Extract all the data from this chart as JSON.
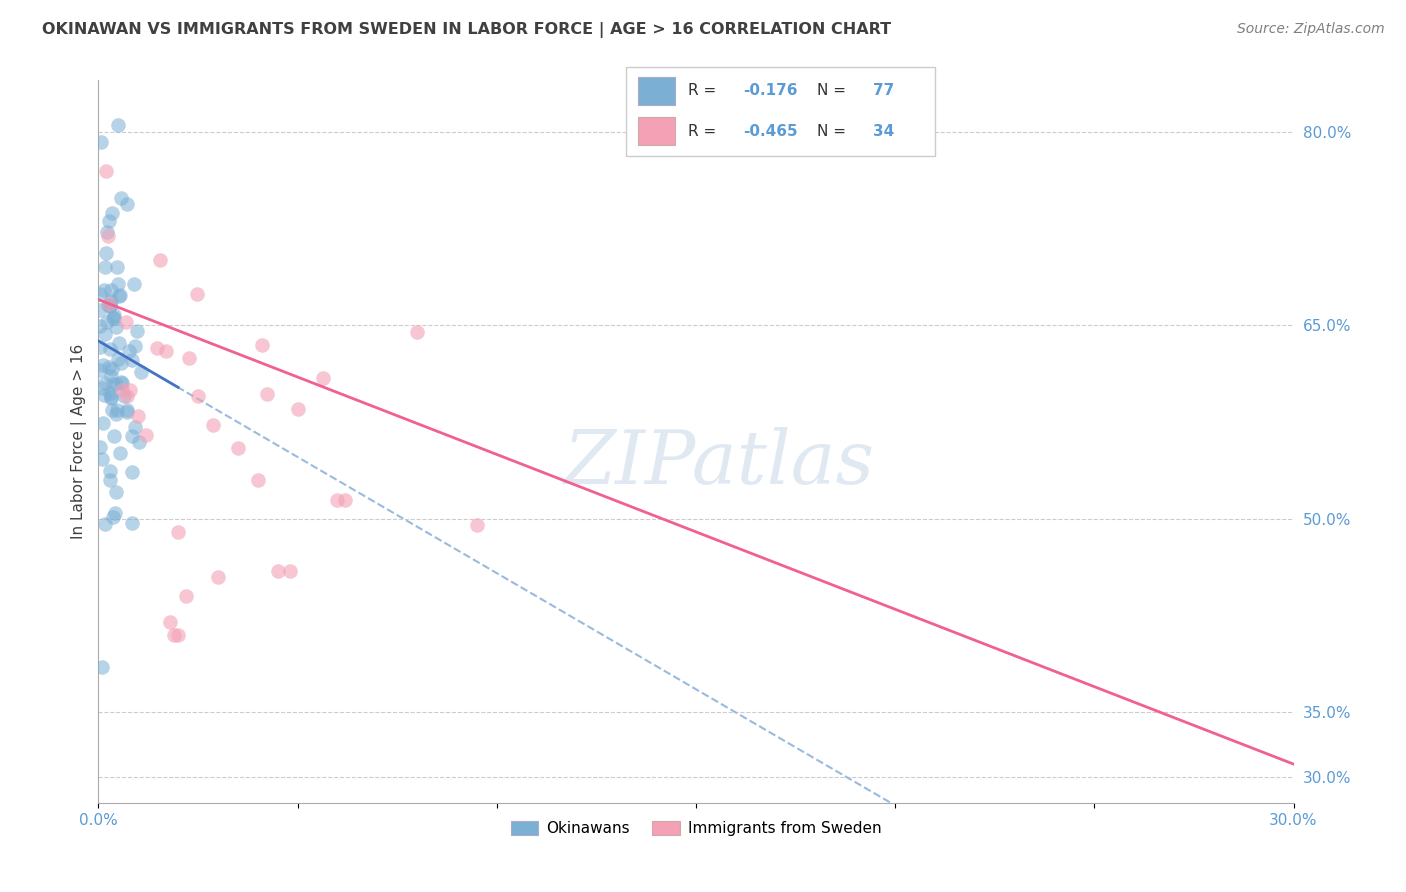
{
  "title": "OKINAWAN VS IMMIGRANTS FROM SWEDEN IN LABOR FORCE | AGE > 16 CORRELATION CHART",
  "source": "Source: ZipAtlas.com",
  "ylabel": "In Labor Force | Age > 16",
  "watermark": "ZIPatlas",
  "okinawan_color": "#7BAFD4",
  "sweden_color": "#F4A0B5",
  "okinawan_line_color": "#4472C4",
  "sweden_line_color": "#F06090",
  "dash_color": "#99BBDD",
  "okinawan_R": -0.176,
  "okinawan_N": 77,
  "sweden_R": -0.465,
  "sweden_N": 34,
  "legend_label_1": "Okinawans",
  "legend_label_2": "Immigrants from Sweden",
  "xlim": [
    0.0,
    0.3
  ],
  "ylim": [
    0.28,
    0.84
  ],
  "ytick_vals": [
    0.8,
    0.65,
    0.5,
    0.35,
    0.3
  ],
  "ytick_labels": [
    "80.0%",
    "65.0%",
    "50.0%",
    "35.0%",
    "30.0%"
  ],
  "xtick_vals": [
    0.0,
    0.05,
    0.1,
    0.15,
    0.2,
    0.25,
    0.3
  ],
  "xtick_labels": [
    "0.0%",
    "",
    "",
    "",
    "",
    "",
    "30.0%"
  ],
  "tick_color": "#5B9BD5",
  "grid_color": "#CCCCCC",
  "title_color": "#404040",
  "source_color": "#808080",
  "ylabel_color": "#404040"
}
